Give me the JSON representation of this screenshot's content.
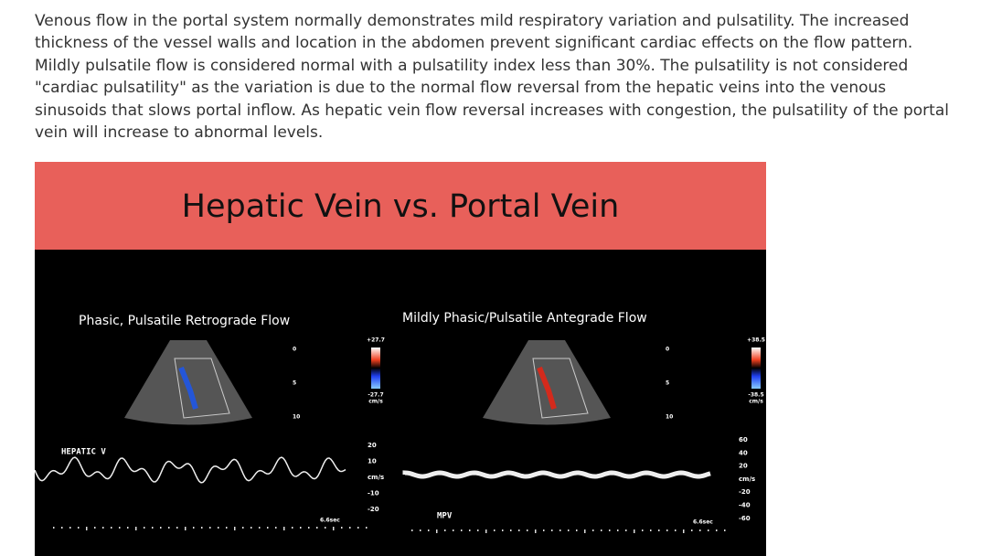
{
  "paragraph": {
    "lines": [
      "Venous flow in the portal system normally demonstrates mild respiratory variation and pulsatility. The increased",
      "thickness of the vessel walls and location in the abdomen prevent significant cardiac effects on the flow pattern.",
      "Mildly pulsatile flow is considered normal with a pulsatility index less than 30%. The pulsatility is not considered",
      "\"cardiac pulsatility\" as the variation is due to the normal flow reversal from the hepatic veins into the venous",
      "sinusoids that slows portal inflow. As hepatic vein flow reversal increases with congestion, the pulsatility of the portal",
      "vein will increase to abnormal levels."
    ]
  },
  "slide": {
    "title": "Hepatic Vein vs. Portal Vein",
    "left": {
      "caption": "Phasic, Pulsatile Retrograde Flow",
      "label": "HEPATIC V",
      "scale_top": "+27.7",
      "scale_bottom": "-27.7",
      "scale_unit": "cm/s",
      "duration": "6.6sec",
      "depth_ticks": [
        "0",
        "5",
        "10"
      ],
      "velocity_ticks": [
        "20",
        "10",
        "cm/s",
        "-10",
        "-20"
      ]
    },
    "right": {
      "caption": "Mildly Phasic/Pulsatile Antegrade Flow",
      "label": "MPV",
      "scale_top": "+38.5",
      "scale_bottom": "-38.5",
      "scale_unit": "cm/s",
      "duration": "6.6sec",
      "depth_ticks": [
        "0",
        "5",
        "10"
      ],
      "velocity_ticks": [
        "60",
        "40",
        "20",
        "cm/s",
        "-20",
        "-40",
        "-60"
      ]
    }
  }
}
